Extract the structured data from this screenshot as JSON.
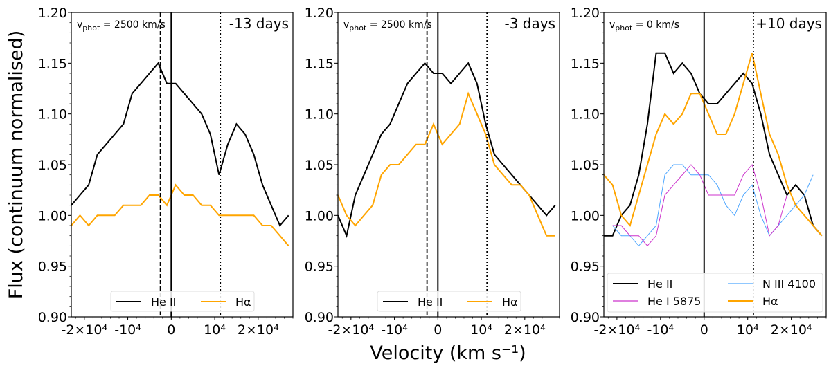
{
  "chart_data": {
    "type": "line",
    "ylabel": "Flux (continuum normalised)",
    "xlabel": "Velocity (km s⁻¹)",
    "ylim": [
      0.9,
      1.2
    ],
    "xlim": [
      -23000,
      28000
    ],
    "yticks": [
      "0.90",
      "0.95",
      "1.00",
      "1.05",
      "1.10",
      "1.15",
      "1.20"
    ],
    "xticks": [
      -20000,
      -10000,
      0,
      10000,
      20000
    ],
    "xtick_labels": [
      "-2×10⁴",
      "-10⁴",
      "0",
      "10⁴",
      "2×10⁴"
    ],
    "x": [
      -23000,
      -21000,
      -19000,
      -17000,
      -15000,
      -13000,
      -11000,
      -9000,
      -7000,
      -5000,
      -3000,
      -1000,
      1000,
      3000,
      5000,
      7000,
      9000,
      11000,
      13000,
      15000,
      17000,
      19000,
      21000,
      23000,
      25000,
      27000
    ],
    "colors": {
      "He II": "#000000",
      "Hα": "#ffa500",
      "N III 4100": "#4da6ff",
      "He I 5875": "#cc33cc"
    },
    "panels": [
      {
        "annotation": {
          "v": "v",
          "sub": "phot",
          "rest": " = 2500 km/s"
        },
        "epoch": "-13 days",
        "vlines": [
          {
            "x": -2500,
            "style": "dashed"
          },
          {
            "x": 0,
            "style": "solid"
          },
          {
            "x": 11300,
            "style": "dotted"
          }
        ],
        "legend_columns": 2,
        "series": [
          {
            "name": "He II",
            "values": [
              1.01,
              1.02,
              1.03,
              1.06,
              1.07,
              1.08,
              1.09,
              1.12,
              1.13,
              1.14,
              1.15,
              1.13,
              1.13,
              1.12,
              1.11,
              1.1,
              1.08,
              1.04,
              1.07,
              1.09,
              1.08,
              1.06,
              1.03,
              1.01,
              0.99,
              1.0
            ]
          },
          {
            "name": "Hα",
            "values": [
              0.99,
              1.0,
              0.99,
              1.0,
              1.0,
              1.0,
              1.01,
              1.01,
              1.01,
              1.02,
              1.02,
              1.01,
              1.03,
              1.02,
              1.02,
              1.01,
              1.01,
              1.0,
              1.0,
              1.0,
              1.0,
              1.0,
              0.99,
              0.99,
              0.98,
              0.97
            ]
          }
        ]
      },
      {
        "annotation": {
          "v": "v",
          "sub": "phot",
          "rest": " = 2500 km/s"
        },
        "epoch": "-3 days",
        "vlines": [
          {
            "x": -2500,
            "style": "dashed"
          },
          {
            "x": 0,
            "style": "solid"
          },
          {
            "x": 11300,
            "style": "dotted"
          }
        ],
        "legend_columns": 2,
        "series": [
          {
            "name": "He II",
            "values": [
              1.0,
              0.98,
              1.02,
              1.04,
              1.06,
              1.08,
              1.09,
              1.11,
              1.13,
              1.14,
              1.15,
              1.14,
              1.14,
              1.13,
              1.14,
              1.15,
              1.13,
              1.09,
              1.06,
              1.05,
              1.04,
              1.03,
              1.02,
              1.01,
              1.0,
              1.01
            ]
          },
          {
            "name": "Hα",
            "values": [
              1.02,
              1.0,
              0.99,
              1.0,
              1.01,
              1.04,
              1.05,
              1.05,
              1.06,
              1.07,
              1.07,
              1.09,
              1.07,
              1.08,
              1.09,
              1.12,
              1.1,
              1.08,
              1.05,
              1.04,
              1.03,
              1.03,
              1.02,
              1.0,
              0.98,
              0.98
            ]
          }
        ]
      },
      {
        "annotation": {
          "v": "v",
          "sub": "phot",
          "rest": " = 0 km/s"
        },
        "epoch": "+10 days",
        "vlines": [
          {
            "x": 0,
            "style": "solid"
          },
          {
            "x": 11300,
            "style": "dotted"
          }
        ],
        "legend_columns": 2,
        "series": [
          {
            "name": "He II",
            "values": [
              0.98,
              0.98,
              1.0,
              1.01,
              1.04,
              1.09,
              1.16,
              1.16,
              1.14,
              1.15,
              1.14,
              1.12,
              1.11,
              1.11,
              1.12,
              1.13,
              1.14,
              1.13,
              1.1,
              1.06,
              1.04,
              1.02,
              1.03,
              1.02,
              0.99,
              0.98
            ]
          },
          {
            "name": "N III 4100",
            "values": [
              null,
              0.99,
              0.98,
              0.98,
              0.97,
              0.98,
              0.99,
              1.04,
              1.05,
              1.05,
              1.04,
              1.04,
              1.04,
              1.03,
              1.01,
              1.0,
              1.02,
              1.03,
              1.0,
              0.98,
              0.99,
              1.0,
              1.01,
              1.02,
              1.04,
              null
            ]
          },
          {
            "name": "He I 5875",
            "values": [
              null,
              0.99,
              0.99,
              0.98,
              0.98,
              0.97,
              0.98,
              1.02,
              1.03,
              1.04,
              1.05,
              1.04,
              1.02,
              1.02,
              1.02,
              1.02,
              1.04,
              1.05,
              1.02,
              0.98,
              0.99,
              1.02,
              null,
              null,
              null,
              null
            ]
          },
          {
            "name": "Hα",
            "values": [
              1.04,
              1.03,
              1.0,
              0.99,
              1.02,
              1.05,
              1.08,
              1.1,
              1.09,
              1.1,
              1.12,
              1.12,
              1.1,
              1.08,
              1.08,
              1.1,
              1.13,
              1.16,
              1.12,
              1.08,
              1.06,
              1.03,
              1.01,
              1.0,
              0.99,
              0.98
            ]
          }
        ]
      }
    ]
  }
}
